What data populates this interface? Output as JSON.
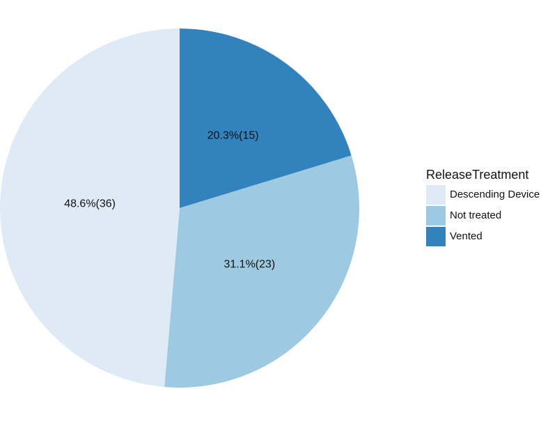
{
  "chart_data": {
    "type": "pie",
    "categories": [
      "Descending Device",
      "Not treated",
      "Vented"
    ],
    "values": [
      36,
      23,
      15
    ],
    "value_labels": [
      "48.6%(36)",
      "31.1%(23)",
      "20.3%(15)"
    ],
    "colors": [
      "#deebf7",
      "#9ecae1",
      "#3182bd"
    ],
    "legend_title": "ReleaseTreatment",
    "legend": "right"
  }
}
